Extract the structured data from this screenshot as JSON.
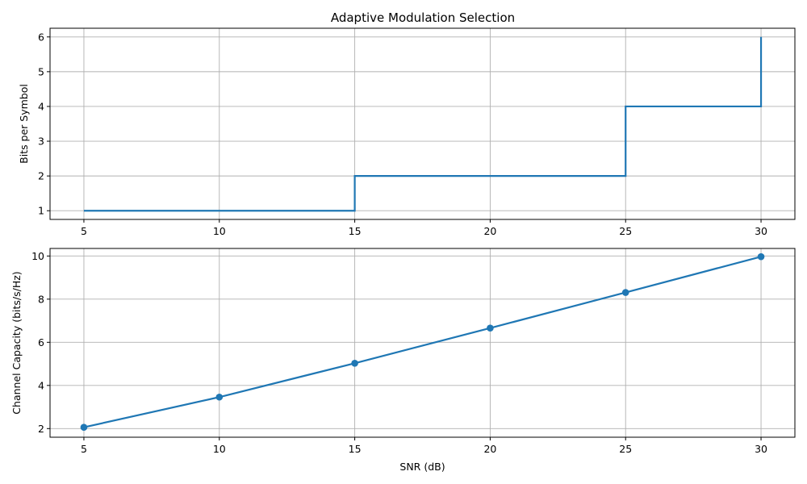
{
  "chart_data": [
    {
      "type": "line",
      "step": "post",
      "title": "Adaptive Modulation Selection",
      "xlabel": "",
      "ylabel": "Bits per Symbol",
      "x": [
        5,
        15,
        25,
        30
      ],
      "series": [
        {
          "values": [
            1,
            2,
            4,
            6
          ],
          "color": "#1f77b4"
        }
      ],
      "xlim": [
        3.75,
        31.25
      ],
      "ylim": [
        0.75,
        6.25
      ],
      "xticks": [
        5,
        10,
        15,
        20,
        25,
        30
      ],
      "yticks": [
        1,
        2,
        3,
        4,
        5,
        6
      ],
      "grid": true,
      "markers": false
    },
    {
      "type": "line",
      "title": "",
      "xlabel": "SNR (dB)",
      "ylabel": "Channel Capacity (bits/s/Hz)",
      "x": [
        5,
        10,
        15,
        20,
        25,
        30
      ],
      "series": [
        {
          "values": [
            2.06,
            3.46,
            5.03,
            6.66,
            8.31,
            9.97
          ],
          "color": "#1f77b4"
        }
      ],
      "xlim": [
        3.75,
        31.25
      ],
      "ylim": [
        1.6,
        10.35
      ],
      "xticks": [
        5,
        10,
        15,
        20,
        25,
        30
      ],
      "yticks": [
        2,
        4,
        6,
        8,
        10
      ],
      "grid": true,
      "markers": true
    }
  ]
}
